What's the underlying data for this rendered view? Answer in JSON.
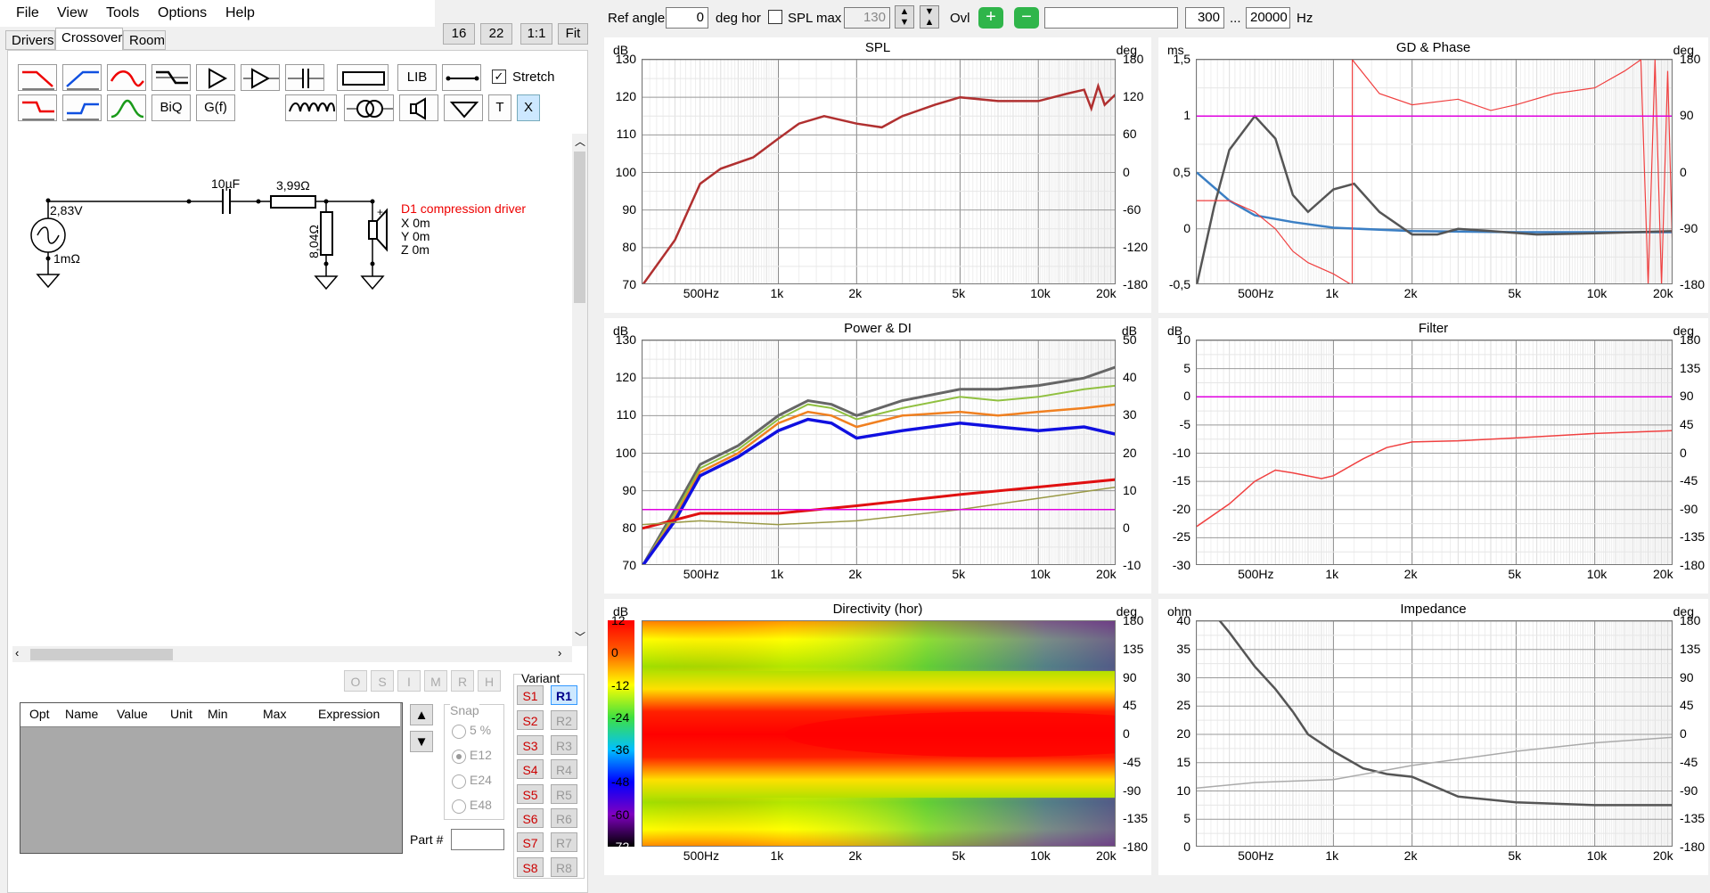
{
  "menu": [
    "File",
    "View",
    "Tools",
    "Options",
    "Help"
  ],
  "tabs": [
    "Drivers",
    "Crossover",
    "Room"
  ],
  "zoom_buttons": [
    "16",
    "22",
    "1:1",
    "Fit"
  ],
  "toolbar": {
    "lib": "LIB",
    "stretch": "Stretch",
    "biq": "BiQ",
    "gf": "G(f)",
    "t": "T",
    "x": "X"
  },
  "schematic": {
    "voltage": "2,83V",
    "source_r": "1mΩ",
    "cap": "10µF",
    "res": "3,99Ω",
    "shunt": "8,04Ω",
    "driver_name": "D1 compression driver",
    "x": "X 0m",
    "y": "Y 0m",
    "z": "Z 0m"
  },
  "opt_buttons": [
    "O",
    "S",
    "I",
    "M",
    "R",
    "H"
  ],
  "grid_headers": [
    "Opt",
    "Name",
    "Value",
    "Unit",
    "Min",
    "Max",
    "Expression"
  ],
  "snap": {
    "title": "Snap",
    "options": [
      "5 %",
      "E12",
      "E24",
      "E48"
    ]
  },
  "part_label": "Part #",
  "variant": {
    "title": "Variant",
    "s": [
      "S1",
      "S2",
      "S3",
      "S4",
      "S5",
      "S6",
      "S7",
      "S8"
    ],
    "r": [
      "R1",
      "R2",
      "R3",
      "R4",
      "R5",
      "R6",
      "R7",
      "R8"
    ]
  },
  "topbar": {
    "ref_angle": "Ref angle",
    "ref_value": "0",
    "deg_hor": "deg hor",
    "spl_max": "SPL max",
    "spl_value": "130",
    "ovl": "Ovl",
    "f_lo": "300",
    "dots": "...",
    "f_hi": "20000",
    "hz": "Hz"
  },
  "x_ticks": [
    "500Hz",
    "1k",
    "2k",
    "5k",
    "10k",
    "20k"
  ],
  "panels": {
    "spl": {
      "title": "SPL",
      "left_unit": "dB",
      "right_unit": "deg",
      "left": [
        "130",
        "120",
        "110",
        "100",
        "90",
        "80",
        "70"
      ],
      "right": [
        "180",
        "120",
        "60",
        "0",
        "-60",
        "-120",
        "-180"
      ]
    },
    "gd": {
      "title": "GD & Phase",
      "left_unit": "ms",
      "right_unit": "deg",
      "left": [
        "1,5",
        "1",
        "0,5",
        "0",
        "-0,5"
      ],
      "right": [
        "180",
        "90",
        "0",
        "-90",
        "-180"
      ]
    },
    "power": {
      "title": "Power & DI",
      "left_unit": "dB",
      "right_unit": "dB",
      "left": [
        "130",
        "120",
        "110",
        "100",
        "90",
        "80",
        "70"
      ],
      "right": [
        "50",
        "40",
        "30",
        "20",
        "10",
        "0",
        "-10"
      ]
    },
    "filter": {
      "title": "Filter",
      "left_unit": "dB",
      "right_unit": "deg",
      "left": [
        "10",
        "5",
        "0",
        "-5",
        "-10",
        "-15",
        "-20",
        "-25",
        "-30"
      ],
      "right": [
        "180",
        "135",
        "90",
        "45",
        "0",
        "-45",
        "-90",
        "-135",
        "-180"
      ]
    },
    "dir": {
      "title": "Directivity (hor)",
      "left_unit": "dB",
      "right_unit": "deg",
      "scale": [
        "12",
        "0",
        "-12",
        "-24",
        "-36",
        "-48",
        "-60",
        "-72"
      ],
      "right": [
        "180",
        "135",
        "90",
        "45",
        "0",
        "-45",
        "-90",
        "-135",
        "-180"
      ]
    },
    "imp": {
      "title": "Impedance",
      "left_unit": "ohm",
      "right_unit": "deg",
      "left": [
        "40",
        "35",
        "30",
        "25",
        "20",
        "15",
        "10",
        "5",
        "0"
      ],
      "right": [
        "180",
        "135",
        "90",
        "45",
        "0",
        "-45",
        "-90",
        "-135",
        "-180"
      ]
    }
  }
}
